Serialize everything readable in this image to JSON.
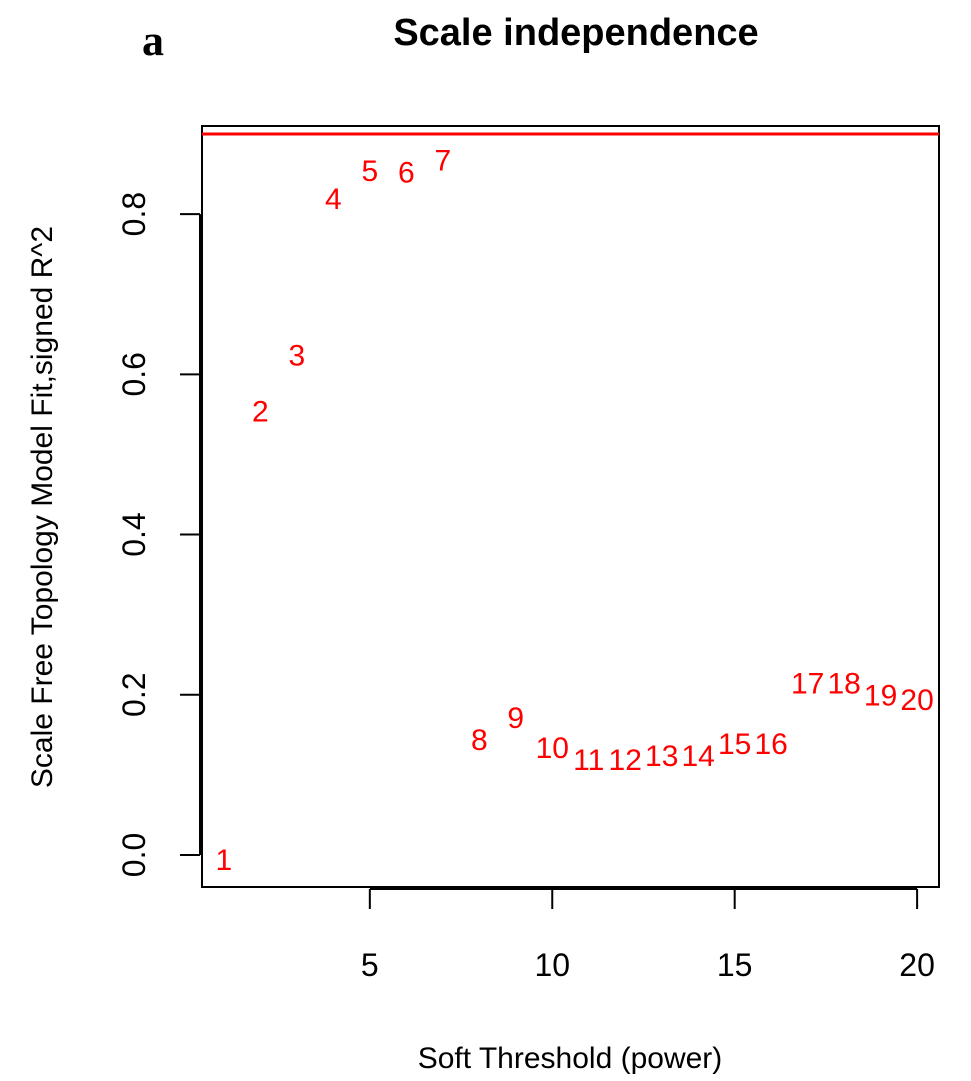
{
  "panel_label": "a",
  "chart_data": {
    "type": "scatter",
    "title": "Scale independence",
    "xlabel": "Soft Threshold (power)",
    "ylabel": "Scale Free Topology Model Fit,signed R^2",
    "xlim": [
      0.4,
      20.6
    ],
    "ylim": [
      -0.04,
      0.91
    ],
    "xticks": [
      5,
      10,
      15,
      20
    ],
    "yticks": [
      0.0,
      0.2,
      0.4,
      0.6,
      0.8
    ],
    "grid": false,
    "point_labels_color": "#ff0000",
    "reference_line": {
      "y": 0.9,
      "color": "#ff0000"
    },
    "points": [
      {
        "x": 1,
        "y": -0.005,
        "label": "1"
      },
      {
        "x": 2,
        "y": 0.555,
        "label": "2"
      },
      {
        "x": 3,
        "y": 0.625,
        "label": "3"
      },
      {
        "x": 4,
        "y": 0.82,
        "label": "4"
      },
      {
        "x": 5,
        "y": 0.855,
        "label": "5"
      },
      {
        "x": 6,
        "y": 0.853,
        "label": "6"
      },
      {
        "x": 7,
        "y": 0.868,
        "label": "7"
      },
      {
        "x": 8,
        "y": 0.145,
        "label": "8"
      },
      {
        "x": 9,
        "y": 0.172,
        "label": "9"
      },
      {
        "x": 10,
        "y": 0.135,
        "label": "10"
      },
      {
        "x": 11,
        "y": 0.12,
        "label": "11"
      },
      {
        "x": 12,
        "y": 0.12,
        "label": "12"
      },
      {
        "x": 13,
        "y": 0.125,
        "label": "13"
      },
      {
        "x": 14,
        "y": 0.125,
        "label": "14"
      },
      {
        "x": 15,
        "y": 0.14,
        "label": "15"
      },
      {
        "x": 16,
        "y": 0.14,
        "label": "16"
      },
      {
        "x": 17,
        "y": 0.215,
        "label": "17"
      },
      {
        "x": 18,
        "y": 0.215,
        "label": "18"
      },
      {
        "x": 19,
        "y": 0.2,
        "label": "19"
      },
      {
        "x": 20,
        "y": 0.195,
        "label": "20"
      }
    ]
  }
}
